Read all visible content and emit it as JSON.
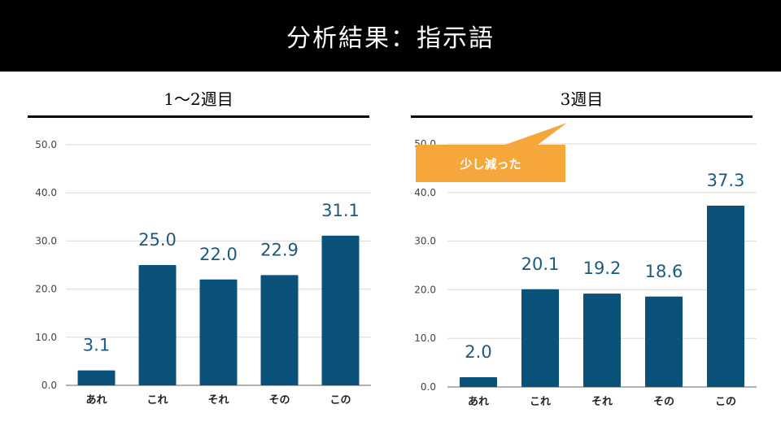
{
  "header": {
    "title": "分析結果：指示語"
  },
  "colors": {
    "bar": "#0b527b",
    "value_label": "#1d5a80",
    "grid": "#d9d9d9",
    "callout": "#f6a73b"
  },
  "callout": {
    "text": "少し減った"
  },
  "chart_data": [
    {
      "type": "bar",
      "title": "1～2週目",
      "categories": [
        "あれ",
        "これ",
        "それ",
        "その",
        "この"
      ],
      "values": [
        3.1,
        25.0,
        22.0,
        22.9,
        31.1
      ],
      "value_labels": [
        "3.1",
        "25.0",
        "22.0",
        "22.9",
        "31.1"
      ],
      "yticks": [
        "0.0",
        "10.0",
        "20.0",
        "30.0",
        "40.0",
        "50.0"
      ],
      "ylim": [
        0,
        50
      ],
      "grid": true
    },
    {
      "type": "bar",
      "title": "3週目",
      "categories": [
        "あれ",
        "これ",
        "それ",
        "その",
        "この"
      ],
      "values": [
        2.0,
        20.1,
        19.2,
        18.6,
        37.3
      ],
      "value_labels": [
        "2.0",
        "20.1",
        "19.2",
        "18.6",
        "37.3"
      ],
      "yticks": [
        "0.0",
        "10.0",
        "20.0",
        "30.0",
        "40.0",
        "50.0"
      ],
      "ylim": [
        0,
        50
      ],
      "grid": true
    }
  ]
}
